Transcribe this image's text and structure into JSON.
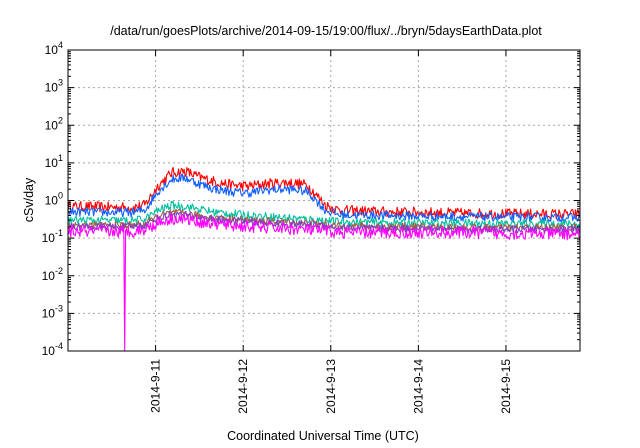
{
  "chart_data": {
    "type": "line",
    "title": "/data/run/goesPlots/archive/2014-09-15/19:00/flux/../bryn/5daysEarthData.plot",
    "xlabel": "Coordinated Universal Time (UTC)",
    "ylabel": "cSv/day",
    "yscale": "log",
    "ylim": [
      0.0001,
      10000
    ],
    "xlim": [
      0,
      5.67
    ],
    "grid": true,
    "yticks": [
      {
        "value": 0.0001,
        "base": "10",
        "exp": "-4"
      },
      {
        "value": 0.001,
        "base": "10",
        "exp": "-3"
      },
      {
        "value": 0.01,
        "base": "10",
        "exp": "-2"
      },
      {
        "value": 0.1,
        "base": "10",
        "exp": "-1"
      },
      {
        "value": 1,
        "base": "10",
        "exp": "0"
      },
      {
        "value": 10,
        "base": "10",
        "exp": "1"
      },
      {
        "value": 100,
        "base": "10",
        "exp": "2"
      },
      {
        "value": 1000,
        "base": "10",
        "exp": "3"
      },
      {
        "value": 10000,
        "base": "10",
        "exp": "4"
      }
    ],
    "xticks": [
      {
        "value": 0.97,
        "label": "2014-9-11"
      },
      {
        "value": 1.94,
        "label": "2014-9-12"
      },
      {
        "value": 2.91,
        "label": "2014-9-13"
      },
      {
        "value": 3.88,
        "label": "2014-9-14"
      },
      {
        "value": 4.85,
        "label": "2014-9-15"
      }
    ],
    "series": [
      {
        "color": "#ff0000",
        "noise": 0.14,
        "points": [
          [
            0,
            0.7
          ],
          [
            0.7,
            0.65
          ],
          [
            0.85,
            0.75
          ],
          [
            1.0,
            2.5
          ],
          [
            1.15,
            5.5
          ],
          [
            1.3,
            6.0
          ],
          [
            1.45,
            4.2
          ],
          [
            1.6,
            3.3
          ],
          [
            1.8,
            2.6
          ],
          [
            2.0,
            2.4
          ],
          [
            2.2,
            2.8
          ],
          [
            2.4,
            3.0
          ],
          [
            2.55,
            2.8
          ],
          [
            2.65,
            2.6
          ],
          [
            2.75,
            1.4
          ],
          [
            2.85,
            0.75
          ],
          [
            3.0,
            0.55
          ],
          [
            3.5,
            0.5
          ],
          [
            4.0,
            0.48
          ],
          [
            4.5,
            0.45
          ],
          [
            5.0,
            0.44
          ],
          [
            5.67,
            0.43
          ]
        ]
      },
      {
        "color": "#1060ff",
        "noise": 0.12,
        "points": [
          [
            0,
            0.5
          ],
          [
            0.7,
            0.48
          ],
          [
            0.85,
            0.55
          ],
          [
            1.0,
            1.8
          ],
          [
            1.15,
            3.7
          ],
          [
            1.3,
            4.0
          ],
          [
            1.45,
            2.8
          ],
          [
            1.6,
            2.1
          ],
          [
            1.8,
            1.7
          ],
          [
            2.0,
            1.6
          ],
          [
            2.2,
            1.9
          ],
          [
            2.4,
            2.0
          ],
          [
            2.55,
            1.9
          ],
          [
            2.65,
            1.7
          ],
          [
            2.75,
            1.0
          ],
          [
            2.85,
            0.55
          ],
          [
            3.0,
            0.42
          ],
          [
            3.5,
            0.4
          ],
          [
            4.0,
            0.38
          ],
          [
            4.5,
            0.37
          ],
          [
            5.0,
            0.36
          ],
          [
            5.67,
            0.35
          ]
        ]
      },
      {
        "color": "#00c0a0",
        "noise": 0.11,
        "points": [
          [
            0,
            0.3
          ],
          [
            0.7,
            0.29
          ],
          [
            0.85,
            0.32
          ],
          [
            1.0,
            0.55
          ],
          [
            1.15,
            0.75
          ],
          [
            1.3,
            0.7
          ],
          [
            1.6,
            0.5
          ],
          [
            2.0,
            0.4
          ],
          [
            2.4,
            0.35
          ],
          [
            2.8,
            0.3
          ],
          [
            3.0,
            0.27
          ],
          [
            3.5,
            0.26
          ],
          [
            4.0,
            0.25
          ],
          [
            4.5,
            0.25
          ],
          [
            5.0,
            0.24
          ],
          [
            5.67,
            0.24
          ]
        ]
      },
      {
        "color": "#a06040",
        "noise": 0.1,
        "points": [
          [
            0,
            0.22
          ],
          [
            0.7,
            0.22
          ],
          [
            0.85,
            0.24
          ],
          [
            1.0,
            0.38
          ],
          [
            1.15,
            0.48
          ],
          [
            1.3,
            0.45
          ],
          [
            1.6,
            0.35
          ],
          [
            2.0,
            0.3
          ],
          [
            2.4,
            0.27
          ],
          [
            2.8,
            0.24
          ],
          [
            3.0,
            0.21
          ],
          [
            3.5,
            0.2
          ],
          [
            4.0,
            0.2
          ],
          [
            4.5,
            0.19
          ],
          [
            5.0,
            0.19
          ],
          [
            5.67,
            0.19
          ]
        ]
      },
      {
        "color": "#8040c0",
        "noise": 0.1,
        "points": [
          [
            0,
            0.2
          ],
          [
            0.7,
            0.2
          ],
          [
            0.85,
            0.22
          ],
          [
            1.0,
            0.34
          ],
          [
            1.15,
            0.43
          ],
          [
            1.3,
            0.41
          ],
          [
            1.6,
            0.32
          ],
          [
            2.0,
            0.27
          ],
          [
            2.4,
            0.24
          ],
          [
            2.8,
            0.22
          ],
          [
            3.0,
            0.19
          ],
          [
            3.5,
            0.18
          ],
          [
            4.0,
            0.18
          ],
          [
            4.5,
            0.17
          ],
          [
            5.0,
            0.17
          ],
          [
            5.67,
            0.17
          ]
        ]
      },
      {
        "color": "#ff00ff",
        "noise": 0.16,
        "dropout": {
          "x": 0.63,
          "y": 0.0001
        },
        "points": [
          [
            0,
            0.15
          ],
          [
            0.7,
            0.15
          ],
          [
            0.85,
            0.17
          ],
          [
            1.0,
            0.26
          ],
          [
            1.15,
            0.33
          ],
          [
            1.3,
            0.32
          ],
          [
            1.6,
            0.24
          ],
          [
            2.0,
            0.2
          ],
          [
            2.4,
            0.18
          ],
          [
            2.8,
            0.16
          ],
          [
            3.0,
            0.14
          ],
          [
            3.5,
            0.14
          ],
          [
            4.0,
            0.14
          ],
          [
            4.5,
            0.14
          ],
          [
            5.0,
            0.13
          ],
          [
            5.67,
            0.13
          ]
        ]
      }
    ]
  }
}
